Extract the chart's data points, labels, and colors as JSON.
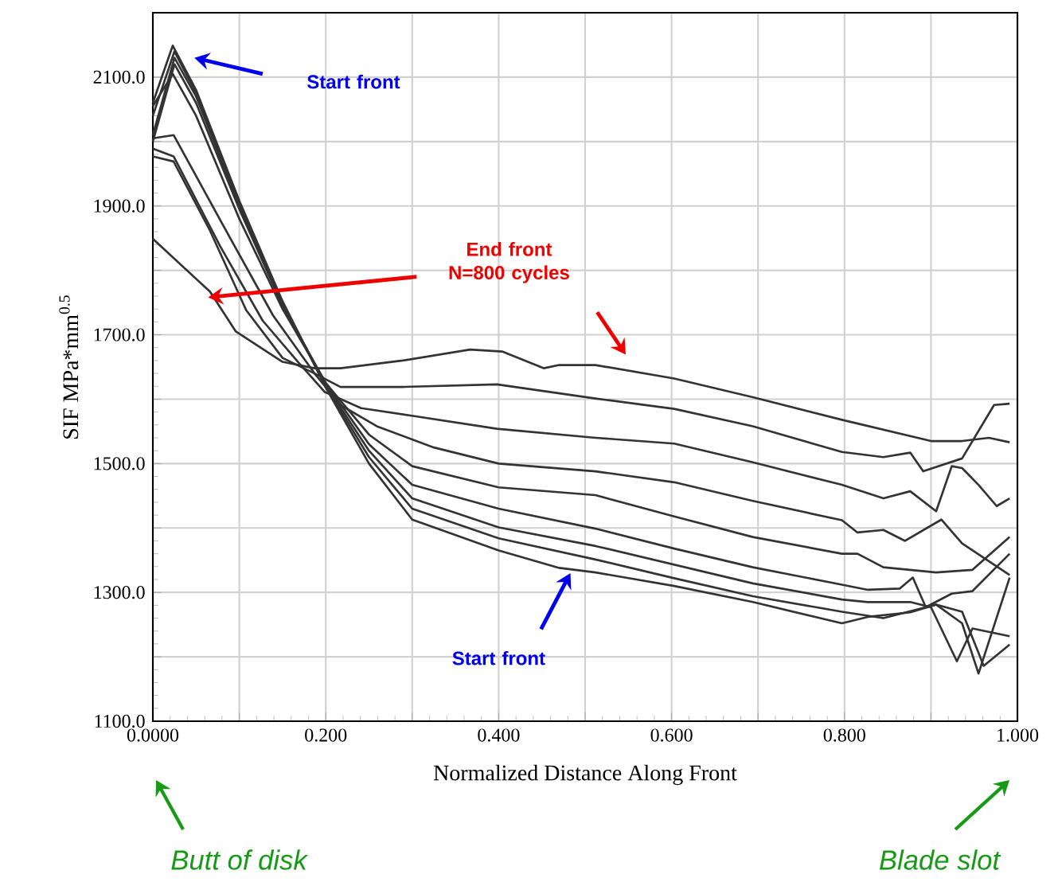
{
  "chart_data": {
    "type": "line",
    "xlabel": "Normalized Distance Along Front",
    "ylabel": "SIF  MPa*mm$^{0.5}$",
    "xlim": [
      0,
      1
    ],
    "ylim": [
      1100,
      2200
    ],
    "xticks": [
      {
        "value": 0,
        "label": "0.0000"
      },
      {
        "value": 0.1,
        "label": null
      },
      {
        "value": 0.2,
        "label": "0.200"
      },
      {
        "value": 0.3,
        "label": null
      },
      {
        "value": 0.4,
        "label": "0.400"
      },
      {
        "value": 0.5,
        "label": null
      },
      {
        "value": 0.6,
        "label": "0.600"
      },
      {
        "value": 0.7,
        "label": null
      },
      {
        "value": 0.8,
        "label": "0.800"
      },
      {
        "value": 0.9,
        "label": null
      },
      {
        "value": 1,
        "label": "1.000"
      }
    ],
    "yticks": [
      {
        "value": 1100,
        "label": "1100.0"
      },
      {
        "value": 1200,
        "label": null
      },
      {
        "value": 1300,
        "label": "1300.0"
      },
      {
        "value": 1400,
        "label": null
      },
      {
        "value": 1500,
        "label": "1500.0"
      },
      {
        "value": 1600,
        "label": null
      },
      {
        "value": 1700,
        "label": "1700.0"
      },
      {
        "value": 1800,
        "label": null
      },
      {
        "value": 1900,
        "label": "1900.0"
      },
      {
        "value": 2000,
        "label": null
      },
      {
        "value": 2100,
        "label": "2100.0"
      }
    ],
    "grid": true,
    "annotations": [
      "Start front",
      "End front N=800 cycles",
      "Start front",
      "Butt of disk",
      "Blade slot"
    ],
    "series": [
      {
        "color": "#333333",
        "x": [
          0,
          0.066,
          0.096,
          0.15,
          0.187,
          0.217,
          0.289,
          0.367,
          0.404,
          0.452,
          0.47,
          0.512,
          0.603,
          0.694,
          0.797,
          0.9,
          0.936,
          0.967,
          0.991
        ],
        "values": [
          1849,
          1767,
          1705,
          1658,
          1648,
          1648,
          1660,
          1677,
          1674,
          1648,
          1653,
          1653,
          1632,
          1603,
          1568,
          1535,
          1535,
          1540,
          1533
        ]
      },
      {
        "color": "#333333",
        "x": [
          0,
          0.024,
          0.066,
          0.108,
          0.15,
          0.187,
          0.217,
          0.289,
          0.398,
          0.512,
          0.603,
          0.694,
          0.797,
          0.845,
          0.876,
          0.891,
          0.936,
          0.973,
          0.991
        ],
        "values": [
          1977,
          1969,
          1862,
          1738,
          1664,
          1640,
          1619,
          1619,
          1623,
          1601,
          1585,
          1558,
          1518,
          1510,
          1517,
          1488,
          1508,
          1591,
          1593
        ]
      },
      {
        "color": "#333333",
        "x": [
          0,
          0.024,
          0.078,
          0.127,
          0.169,
          0.199,
          0.241,
          0.301,
          0.398,
          0.512,
          0.603,
          0.694,
          0.797,
          0.845,
          0.876,
          0.906,
          0.924,
          0.936,
          0.955,
          0.976,
          0.991
        ],
        "values": [
          1989,
          1977,
          1837,
          1722,
          1656,
          1611,
          1586,
          1574,
          1554,
          1540,
          1531,
          1502,
          1467,
          1446,
          1457,
          1426,
          1496,
          1493,
          1467,
          1434,
          1446
        ]
      },
      {
        "color": "#333333",
        "x": [
          0,
          0.024,
          0.078,
          0.139,
          0.187,
          0.217,
          0.259,
          0.325,
          0.4,
          0.512,
          0.603,
          0.694,
          0.797,
          0.815,
          0.845,
          0.87,
          0.912,
          0.936,
          0.973,
          0.991
        ],
        "values": [
          2005,
          2010,
          1878,
          1730,
          1640,
          1591,
          1558,
          1525,
          1500,
          1488,
          1471,
          1442,
          1412,
          1393,
          1397,
          1380,
          1413,
          1376,
          1343,
          1327
        ]
      },
      {
        "color": "#333333",
        "x": [
          0,
          0.023,
          0.05,
          0.1,
          0.15,
          0.2,
          0.25,
          0.3,
          0.4,
          0.512,
          0.603,
          0.694,
          0.797,
          0.815,
          0.845,
          0.906,
          0.948,
          0.991
        ],
        "values": [
          2055,
          2105,
          2040,
          1880,
          1740,
          1625,
          1545,
          1496,
          1463,
          1451,
          1418,
          1386,
          1360,
          1360,
          1339,
          1331,
          1335,
          1386
        ]
      },
      {
        "color": "#333333",
        "x": [
          0,
          0.025,
          0.05,
          0.1,
          0.15,
          0.2,
          0.25,
          0.3,
          0.4,
          0.512,
          0.603,
          0.694,
          0.797,
          0.827,
          0.864,
          0.879,
          0.894,
          0.924,
          0.948,
          0.991
        ],
        "values": [
          2000,
          2120,
          2060,
          1895,
          1745,
          1625,
          1530,
          1467,
          1430,
          1399,
          1368,
          1339,
          1312,
          1304,
          1306,
          1323,
          1277,
          1298,
          1302,
          1360
        ]
      },
      {
        "color": "#333333",
        "x": [
          0,
          0.025,
          0.05,
          0.1,
          0.15,
          0.2,
          0.25,
          0.3,
          0.4,
          0.512,
          0.603,
          0.694,
          0.797,
          0.827,
          0.876,
          0.9,
          0.93,
          0.948,
          0.991
        ],
        "values": [
          2010,
          2130,
          2070,
          1900,
          1748,
          1622,
          1520,
          1446,
          1401,
          1372,
          1343,
          1314,
          1289,
          1285,
          1285,
          1277,
          1193,
          1244,
          1232
        ]
      },
      {
        "color": "#333333",
        "x": [
          0,
          0.025,
          0.05,
          0.1,
          0.15,
          0.2,
          0.25,
          0.3,
          0.4,
          0.512,
          0.603,
          0.694,
          0.797,
          0.845,
          0.906,
          0.936,
          0.955,
          0.991
        ],
        "values": [
          2040,
          2140,
          2075,
          1905,
          1750,
          1620,
          1510,
          1430,
          1384,
          1351,
          1322,
          1294,
          1270,
          1260,
          1281,
          1252,
          1174,
          1323
        ]
      },
      {
        "color": "#333333",
        "x": [
          0,
          0.023,
          0.05,
          0.1,
          0.15,
          0.2,
          0.25,
          0.3,
          0.4,
          0.47,
          0.512,
          0.603,
          0.694,
          0.797,
          0.827,
          0.876,
          0.906,
          0.936,
          0.961,
          0.991
        ],
        "values": [
          2060,
          2149,
          2080,
          1908,
          1752,
          1618,
          1500,
          1413,
          1365,
          1338,
          1331,
          1310,
          1285,
          1252,
          1262,
          1269,
          1281,
          1270,
          1186,
          1219
        ]
      }
    ]
  }
}
